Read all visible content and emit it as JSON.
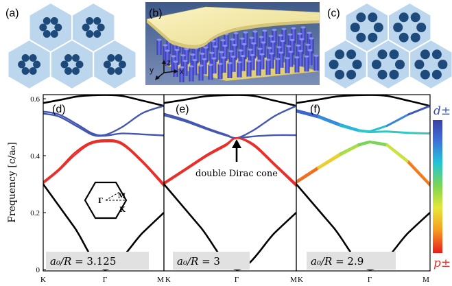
{
  "figure": {
    "panel_labels": [
      "(a)",
      "(b)",
      "(c)",
      "(d)",
      "(e)",
      "(f)"
    ],
    "axes_label_3d": {
      "z": "z",
      "y": "y",
      "x": "x"
    },
    "colors": {
      "hex_fill": "#bcd6ee",
      "hex_edge": "#ffffff",
      "rod": "#1d4a7a",
      "slab": "#f5eca8",
      "rod3d": "#4a4fd0",
      "d_band": "#4457b0",
      "p_band": "#e8302a",
      "black_band": "#000000"
    }
  },
  "chart_data": [
    {
      "type": "line",
      "panel": "(d)",
      "ylabel": "Frequency [c/a₀]",
      "ylim": [
        0,
        0.62
      ],
      "yticks": [
        0,
        0.2,
        0.4,
        0.6
      ],
      "xticks": [
        "K",
        "Γ",
        "M"
      ],
      "ratio_label": {
        "lhs": "a₀/R",
        "eq": " = ",
        "rhs": "3.125"
      },
      "inset_labels": {
        "M": "M",
        "G": "Γ",
        "K": "K"
      },
      "series": [
        {
          "color": "black",
          "x": [
            0,
            0.3,
            0.55,
            0.8,
            1,
            1.2,
            1.45,
            1.7
          ],
          "y": [
            0.585,
            0.597,
            0.608,
            0.612,
            0.613,
            0.61,
            0.593,
            0.575
          ]
        },
        {
          "color": "blue",
          "x": [
            0,
            0.25,
            0.55,
            0.8,
            1,
            1.2,
            1.45,
            1.7
          ],
          "y": [
            0.555,
            0.545,
            0.51,
            0.478,
            0.473,
            0.5,
            0.55,
            0.575
          ]
        },
        {
          "color": "blue",
          "x": [
            0,
            0.25,
            0.55,
            0.8,
            1,
            1.2,
            1.45,
            1.7
          ],
          "y": [
            0.548,
            0.538,
            0.503,
            0.473,
            0.47,
            0.478,
            0.475,
            0.471
          ]
        },
        {
          "color": "red",
          "x": [
            0,
            0.25,
            0.5,
            0.75,
            1,
            1.2,
            1.45,
            1.7
          ],
          "y": [
            0.308,
            0.352,
            0.408,
            0.445,
            0.455,
            0.445,
            0.38,
            0.3
          ]
        },
        {
          "color": "red",
          "x": [
            0,
            0.25,
            0.5,
            0.75,
            1,
            1.2,
            1.45,
            1.7
          ],
          "y": [
            0.303,
            0.347,
            0.4,
            0.44,
            0.45,
            0.44,
            0.375,
            0.293
          ]
        },
        {
          "color": "black",
          "x": [
            0,
            0.5,
            1,
            1.45,
            1.7
          ],
          "y": [
            0.3,
            0.15,
            0,
            0.13,
            0.2
          ]
        }
      ]
    },
    {
      "type": "line",
      "panel": "(e)",
      "ylim": [
        0,
        0.62
      ],
      "xticks": [
        "K",
        "Γ",
        "M"
      ],
      "ratio_label": {
        "lhs": "a₀/R",
        "eq": " = ",
        "rhs": "3"
      },
      "annotation": "double Dirac cone",
      "series": [
        {
          "color": "black",
          "x": [
            0,
            0.3,
            0.55,
            0.8,
            1,
            1.2,
            1.45,
            1.7
          ],
          "y": [
            0.585,
            0.597,
            0.608,
            0.612,
            0.613,
            0.61,
            0.593,
            0.575
          ]
        },
        {
          "color": "blue",
          "x": [
            0,
            0.3,
            0.6,
            0.85,
            1,
            1.2,
            1.45,
            1.7
          ],
          "y": [
            0.548,
            0.525,
            0.496,
            0.474,
            0.462,
            0.49,
            0.54,
            0.575
          ]
        },
        {
          "color": "blue",
          "x": [
            0,
            0.3,
            0.6,
            0.85,
            1,
            1.2,
            1.45,
            1.7
          ],
          "y": [
            0.542,
            0.52,
            0.492,
            0.471,
            0.462,
            0.468,
            0.472,
            0.472
          ]
        },
        {
          "color": "red",
          "x": [
            0,
            0.3,
            0.6,
            0.85,
            1,
            1.2,
            1.45,
            1.7
          ],
          "y": [
            0.305,
            0.355,
            0.405,
            0.44,
            0.462,
            0.44,
            0.37,
            0.3
          ]
        },
        {
          "color": "red",
          "x": [
            0,
            0.3,
            0.6,
            0.85,
            1,
            1.2,
            1.45,
            1.7
          ],
          "y": [
            0.3,
            0.35,
            0.4,
            0.435,
            0.462,
            0.435,
            0.365,
            0.293
          ]
        },
        {
          "color": "black",
          "x": [
            0,
            0.5,
            1,
            1.45,
            1.7
          ],
          "y": [
            0.3,
            0.15,
            0,
            0.13,
            0.2
          ]
        }
      ]
    },
    {
      "type": "line",
      "panel": "(f)",
      "ylim": [
        0,
        0.62
      ],
      "xticks": [
        "K",
        "Γ",
        "M"
      ],
      "ratio_label": {
        "lhs": "a₀/R",
        "eq": " = ",
        "rhs": "2.9"
      },
      "colorbar": {
        "top": "d±",
        "bottom": "p±"
      },
      "series": [
        {
          "color": "black",
          "x": [
            0,
            0.3,
            0.55,
            0.8,
            1,
            1.2,
            1.45,
            1.7
          ],
          "y": [
            0.585,
            0.597,
            0.608,
            0.612,
            0.613,
            0.61,
            0.593,
            0.575
          ]
        },
        {
          "color": "gradient",
          "x": [
            0,
            0.3,
            0.6,
            0.85,
            1,
            1.2,
            1.45,
            1.7
          ],
          "y": [
            0.56,
            0.54,
            0.51,
            0.49,
            0.485,
            0.505,
            0.545,
            0.575
          ]
        },
        {
          "color": "gradient",
          "x": [
            0,
            0.3,
            0.6,
            0.85,
            1,
            1.2,
            1.45,
            1.7
          ],
          "y": [
            0.555,
            0.535,
            0.505,
            0.487,
            0.483,
            0.485,
            0.48,
            0.478
          ]
        },
        {
          "color": "gradient",
          "x": [
            0,
            0.3,
            0.6,
            0.85,
            1,
            1.2,
            1.45,
            1.7
          ],
          "y": [
            0.31,
            0.36,
            0.408,
            0.44,
            0.45,
            0.44,
            0.38,
            0.3
          ]
        },
        {
          "color": "gradient",
          "x": [
            0,
            0.3,
            0.6,
            0.85,
            1,
            1.2,
            1.45,
            1.7
          ],
          "y": [
            0.305,
            0.355,
            0.402,
            0.436,
            0.447,
            0.436,
            0.375,
            0.295
          ]
        },
        {
          "color": "black",
          "x": [
            0,
            0.5,
            1,
            1.45,
            1.7
          ],
          "y": [
            0.3,
            0.15,
            0,
            0.13,
            0.2
          ]
        }
      ]
    }
  ]
}
